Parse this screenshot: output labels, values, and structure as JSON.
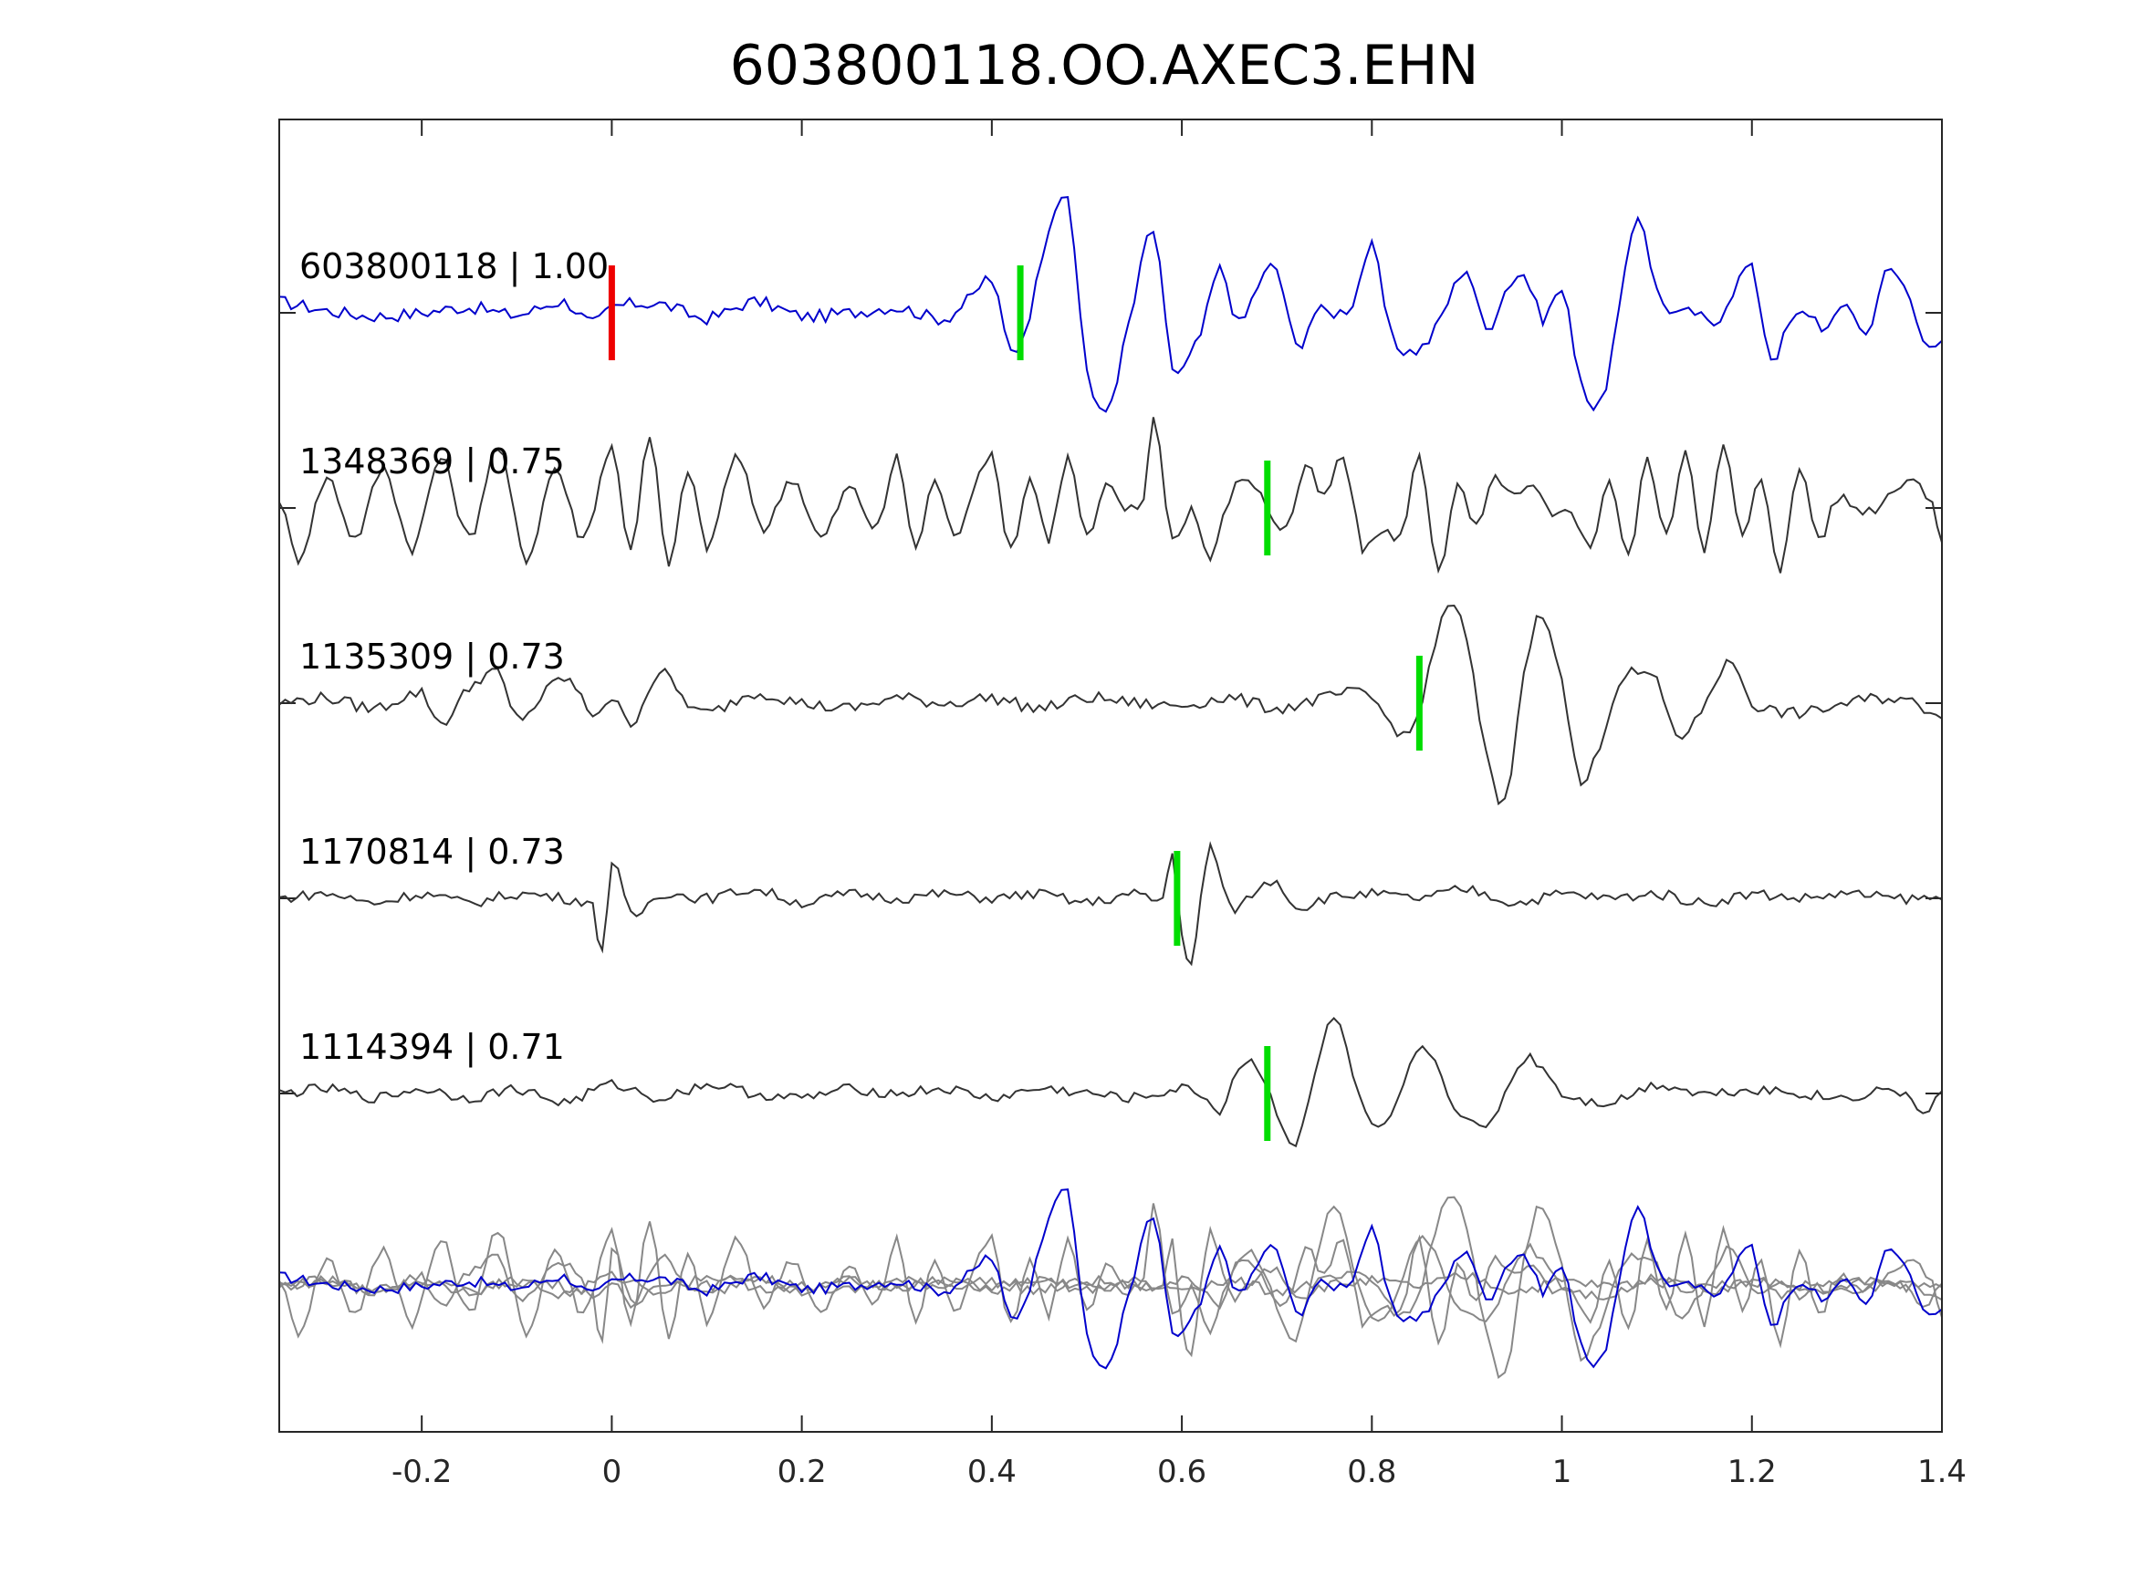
{
  "chart_data": {
    "type": "line",
    "title": "603800118.OO.AXEC3.EHN",
    "xlabel": "",
    "ylabel": "",
    "xlim": [
      -0.35,
      1.4
    ],
    "xticks": [
      -0.2,
      0,
      0.2,
      0.4,
      0.6,
      0.8,
      1,
      1.2,
      1.4
    ],
    "xtick_labels": [
      "-0.2",
      "0",
      "0.2",
      "0.4",
      "0.6",
      "0.8",
      "1",
      "1.2",
      "1.4"
    ],
    "grid": false,
    "legend": "none",
    "series": [
      {
        "label": "603800118 | 1.00",
        "color": "#0000cc",
        "pick": 0.43,
        "pick_color": "#00dd00",
        "reference_pick": 0,
        "reference_pick_color": "#ee0000",
        "samples": [
          [
            -0.35,
            0.1
          ],
          [
            -0.3,
            0.02
          ],
          [
            -0.25,
            -0.03
          ],
          [
            -0.2,
            0.0
          ],
          [
            -0.15,
            0.05
          ],
          [
            -0.1,
            -0.02
          ],
          [
            -0.05,
            0.1
          ],
          [
            -0.02,
            -0.1
          ],
          [
            0.0,
            0.05
          ],
          [
            0.05,
            0.08
          ],
          [
            0.1,
            -0.05
          ],
          [
            0.15,
            0.1
          ],
          [
            0.2,
            -0.03
          ],
          [
            0.25,
            0.0
          ],
          [
            0.3,
            0.05
          ],
          [
            0.35,
            -0.05
          ],
          [
            0.38,
            0.15
          ],
          [
            0.4,
            0.3
          ],
          [
            0.42,
            -0.35
          ],
          [
            0.44,
            0.0
          ],
          [
            0.46,
            0.8
          ],
          [
            0.48,
            1.0
          ],
          [
            0.5,
            -0.5
          ],
          [
            0.52,
            -0.9
          ],
          [
            0.55,
            0.1
          ],
          [
            0.57,
            0.75
          ],
          [
            0.59,
            -0.5
          ],
          [
            0.62,
            -0.2
          ],
          [
            0.64,
            0.4
          ],
          [
            0.66,
            -0.1
          ],
          [
            0.68,
            0.25
          ],
          [
            0.7,
            0.4
          ],
          [
            0.72,
            -0.3
          ],
          [
            0.74,
            0.0
          ],
          [
            0.76,
            0.0
          ],
          [
            0.78,
            0.1
          ],
          [
            0.8,
            0.6
          ],
          [
            0.82,
            -0.2
          ],
          [
            0.84,
            -0.35
          ],
          [
            0.86,
            -0.25
          ],
          [
            0.88,
            0.1
          ],
          [
            0.9,
            0.4
          ],
          [
            0.92,
            -0.15
          ],
          [
            0.94,
            0.2
          ],
          [
            0.96,
            0.35
          ],
          [
            0.98,
            -0.05
          ],
          [
            1.0,
            0.2
          ],
          [
            1.02,
            -0.6
          ],
          [
            1.04,
            -0.85
          ],
          [
            1.06,
            0.0
          ],
          [
            1.08,
            0.9
          ],
          [
            1.1,
            0.2
          ],
          [
            1.12,
            0.0
          ],
          [
            1.14,
            0.0
          ],
          [
            1.16,
            -0.1
          ],
          [
            1.18,
            0.2
          ],
          [
            1.2,
            0.4
          ],
          [
            1.22,
            -0.4
          ],
          [
            1.24,
            -0.1
          ],
          [
            1.26,
            0.0
          ],
          [
            1.28,
            -0.15
          ],
          [
            1.3,
            0.1
          ],
          [
            1.32,
            -0.2
          ],
          [
            1.34,
            0.35
          ],
          [
            1.36,
            0.25
          ],
          [
            1.38,
            -0.2
          ],
          [
            1.4,
            -0.3
          ]
        ]
      },
      {
        "label": "1348369 | 0.75",
        "color": "#333333",
        "pick": 0.69,
        "pick_color": "#00dd00",
        "samples": [
          [
            -0.35,
            0.1
          ],
          [
            -0.33,
            -0.5
          ],
          [
            -0.3,
            0.3
          ],
          [
            -0.27,
            -0.3
          ],
          [
            -0.24,
            0.4
          ],
          [
            -0.21,
            -0.4
          ],
          [
            -0.18,
            0.5
          ],
          [
            -0.15,
            -0.3
          ],
          [
            -0.12,
            0.6
          ],
          [
            -0.09,
            -0.5
          ],
          [
            -0.06,
            0.4
          ],
          [
            -0.03,
            -0.3
          ],
          [
            0.0,
            0.6
          ],
          [
            0.02,
            -0.4
          ],
          [
            0.04,
            0.7
          ],
          [
            0.06,
            -0.6
          ],
          [
            0.08,
            0.4
          ],
          [
            0.1,
            -0.4
          ],
          [
            0.13,
            0.5
          ],
          [
            0.16,
            -0.2
          ],
          [
            0.19,
            0.3
          ],
          [
            0.22,
            -0.3
          ],
          [
            0.25,
            0.2
          ],
          [
            0.28,
            -0.2
          ],
          [
            0.3,
            0.5
          ],
          [
            0.32,
            -0.4
          ],
          [
            0.34,
            0.3
          ],
          [
            0.36,
            -0.3
          ],
          [
            0.38,
            0.2
          ],
          [
            0.4,
            0.5
          ],
          [
            0.42,
            -0.4
          ],
          [
            0.44,
            0.3
          ],
          [
            0.46,
            -0.3
          ],
          [
            0.48,
            0.5
          ],
          [
            0.5,
            -0.3
          ],
          [
            0.52,
            0.2
          ],
          [
            0.54,
            0.0
          ],
          [
            0.56,
            0.1
          ],
          [
            0.57,
            0.9
          ],
          [
            0.59,
            -0.3
          ],
          [
            0.61,
            0.0
          ],
          [
            0.63,
            -0.5
          ],
          [
            0.65,
            0.1
          ],
          [
            0.67,
            0.3
          ],
          [
            0.69,
            0.0
          ],
          [
            0.71,
            -0.2
          ],
          [
            0.73,
            0.4
          ],
          [
            0.75,
            0.1
          ],
          [
            0.77,
            0.5
          ],
          [
            0.79,
            -0.4
          ],
          [
            0.81,
            -0.2
          ],
          [
            0.83,
            -0.3
          ],
          [
            0.85,
            0.5
          ],
          [
            0.87,
            -0.6
          ],
          [
            0.89,
            0.2
          ],
          [
            0.91,
            -0.2
          ],
          [
            0.93,
            0.3
          ],
          [
            0.95,
            0.1
          ],
          [
            0.97,
            0.2
          ],
          [
            0.99,
            -0.1
          ],
          [
            1.01,
            0.0
          ],
          [
            1.03,
            -0.4
          ],
          [
            1.05,
            0.3
          ],
          [
            1.07,
            -0.5
          ],
          [
            1.09,
            0.5
          ],
          [
            1.11,
            -0.3
          ],
          [
            1.13,
            0.6
          ],
          [
            1.15,
            -0.4
          ],
          [
            1.17,
            0.6
          ],
          [
            1.19,
            -0.3
          ],
          [
            1.21,
            0.3
          ],
          [
            1.23,
            -0.6
          ],
          [
            1.25,
            0.4
          ],
          [
            1.27,
            -0.3
          ],
          [
            1.29,
            0.1
          ],
          [
            1.31,
            0.0
          ],
          [
            1.33,
            0.0
          ],
          [
            1.35,
            0.2
          ],
          [
            1.37,
            0.3
          ],
          [
            1.39,
            0.0
          ],
          [
            1.4,
            -0.3
          ]
        ]
      },
      {
        "label": "1135309 | 0.73",
        "color": "#333333",
        "pick": 0.85,
        "pick_color": "#00dd00",
        "samples": [
          [
            -0.35,
            0.0
          ],
          [
            -0.3,
            0.05
          ],
          [
            -0.25,
            -0.05
          ],
          [
            -0.2,
            0.1
          ],
          [
            -0.18,
            -0.2
          ],
          [
            -0.15,
            0.15
          ],
          [
            -0.12,
            0.3
          ],
          [
            -0.1,
            -0.15
          ],
          [
            -0.05,
            0.25
          ],
          [
            -0.02,
            -0.1
          ],
          [
            0.0,
            0.05
          ],
          [
            0.02,
            -0.2
          ],
          [
            0.05,
            0.3
          ],
          [
            0.08,
            0.0
          ],
          [
            0.1,
            -0.1
          ],
          [
            0.15,
            0.1
          ],
          [
            0.2,
            0.0
          ],
          [
            0.25,
            -0.05
          ],
          [
            0.3,
            0.05
          ],
          [
            0.35,
            0.0
          ],
          [
            0.4,
            0.05
          ],
          [
            0.45,
            -0.05
          ],
          [
            0.5,
            0.05
          ],
          [
            0.55,
            0.0
          ],
          [
            0.6,
            -0.02
          ],
          [
            0.65,
            0.05
          ],
          [
            0.7,
            -0.05
          ],
          [
            0.75,
            0.05
          ],
          [
            0.78,
            0.1
          ],
          [
            0.8,
            0.05
          ],
          [
            0.82,
            -0.2
          ],
          [
            0.84,
            -0.3
          ],
          [
            0.86,
            0.3
          ],
          [
            0.88,
            1.0
          ],
          [
            0.9,
            0.6
          ],
          [
            0.92,
            -0.5
          ],
          [
            0.94,
            -1.0
          ],
          [
            0.96,
            0.3
          ],
          [
            0.98,
            0.9
          ],
          [
            1.0,
            0.2
          ],
          [
            1.02,
            -0.8
          ],
          [
            1.04,
            -0.4
          ],
          [
            1.06,
            0.2
          ],
          [
            1.08,
            0.3
          ],
          [
            1.1,
            0.2
          ],
          [
            1.12,
            -0.3
          ],
          [
            1.14,
            -0.2
          ],
          [
            1.16,
            0.2
          ],
          [
            1.18,
            0.4
          ],
          [
            1.2,
            0.0
          ],
          [
            1.25,
            -0.1
          ],
          [
            1.3,
            0.0
          ],
          [
            1.35,
            0.05
          ],
          [
            1.4,
            -0.1
          ]
        ]
      },
      {
        "label": "1170814 | 0.73",
        "color": "#333333",
        "pick": 0.595,
        "pick_color": "#00dd00",
        "samples": [
          [
            -0.35,
            0.0
          ],
          [
            -0.3,
            0.05
          ],
          [
            -0.25,
            -0.05
          ],
          [
            -0.2,
            0.05
          ],
          [
            -0.15,
            -0.05
          ],
          [
            -0.1,
            0.05
          ],
          [
            -0.05,
            0.0
          ],
          [
            -0.02,
            -0.1
          ],
          [
            -0.01,
            -0.6
          ],
          [
            0.0,
            0.4
          ],
          [
            0.02,
            -0.2
          ],
          [
            0.05,
            0.05
          ],
          [
            0.1,
            0.0
          ],
          [
            0.15,
            0.1
          ],
          [
            0.2,
            -0.05
          ],
          [
            0.25,
            0.05
          ],
          [
            0.3,
            0.0
          ],
          [
            0.35,
            0.05
          ],
          [
            0.4,
            0.0
          ],
          [
            0.45,
            0.05
          ],
          [
            0.5,
            -0.05
          ],
          [
            0.55,
            0.05
          ],
          [
            0.58,
            0.0
          ],
          [
            0.59,
            0.5
          ],
          [
            0.6,
            -0.4
          ],
          [
            0.61,
            -0.8
          ],
          [
            0.62,
            0.0
          ],
          [
            0.63,
            0.6
          ],
          [
            0.65,
            -0.1
          ],
          [
            0.68,
            0.1
          ],
          [
            0.7,
            0.2
          ],
          [
            0.72,
            -0.1
          ],
          [
            0.75,
            0.0
          ],
          [
            0.8,
            0.05
          ],
          [
            0.85,
            0.0
          ],
          [
            0.9,
            0.1
          ],
          [
            0.95,
            -0.05
          ],
          [
            1.0,
            0.05
          ],
          [
            1.05,
            0.0
          ],
          [
            1.1,
            0.05
          ],
          [
            1.15,
            -0.05
          ],
          [
            1.2,
            0.05
          ],
          [
            1.25,
            0.0
          ],
          [
            1.3,
            0.05
          ],
          [
            1.35,
            0.0
          ],
          [
            1.4,
            0.0
          ]
        ]
      },
      {
        "label": "1114394 | 0.71",
        "color": "#333333",
        "pick": 0.69,
        "pick_color": "#00dd00",
        "samples": [
          [
            -0.35,
            0.0
          ],
          [
            -0.3,
            0.05
          ],
          [
            -0.25,
            -0.05
          ],
          [
            -0.2,
            0.05
          ],
          [
            -0.15,
            -0.05
          ],
          [
            -0.1,
            0.05
          ],
          [
            -0.05,
            -0.1
          ],
          [
            0.0,
            0.1
          ],
          [
            0.05,
            -0.05
          ],
          [
            0.1,
            0.1
          ],
          [
            0.15,
            0.0
          ],
          [
            0.2,
            -0.05
          ],
          [
            0.25,
            0.05
          ],
          [
            0.3,
            0.0
          ],
          [
            0.35,
            0.05
          ],
          [
            0.4,
            -0.05
          ],
          [
            0.45,
            0.05
          ],
          [
            0.5,
            0.0
          ],
          [
            0.55,
            -0.05
          ],
          [
            0.6,
            0.05
          ],
          [
            0.62,
            0.0
          ],
          [
            0.64,
            -0.2
          ],
          [
            0.66,
            0.3
          ],
          [
            0.68,
            0.3
          ],
          [
            0.7,
            -0.2
          ],
          [
            0.72,
            -0.6
          ],
          [
            0.74,
            0.2
          ],
          [
            0.76,
            0.9
          ],
          [
            0.78,
            0.2
          ],
          [
            0.8,
            -0.4
          ],
          [
            0.82,
            -0.3
          ],
          [
            0.84,
            0.3
          ],
          [
            0.86,
            0.5
          ],
          [
            0.88,
            0.0
          ],
          [
            0.9,
            -0.3
          ],
          [
            0.92,
            -0.4
          ],
          [
            0.94,
            0.0
          ],
          [
            0.96,
            0.4
          ],
          [
            0.98,
            0.3
          ],
          [
            1.0,
            0.0
          ],
          [
            1.05,
            -0.1
          ],
          [
            1.1,
            0.1
          ],
          [
            1.15,
            0.0
          ],
          [
            1.2,
            0.05
          ],
          [
            1.25,
            0.0
          ],
          [
            1.3,
            -0.05
          ],
          [
            1.35,
            0.05
          ],
          [
            1.38,
            -0.2
          ],
          [
            1.4,
            0.0
          ]
        ]
      }
    ],
    "overlay": {
      "description": "all traces overlaid with unity spacing",
      "primary_color": "#0000cc",
      "secondary_color": "#888888"
    }
  }
}
